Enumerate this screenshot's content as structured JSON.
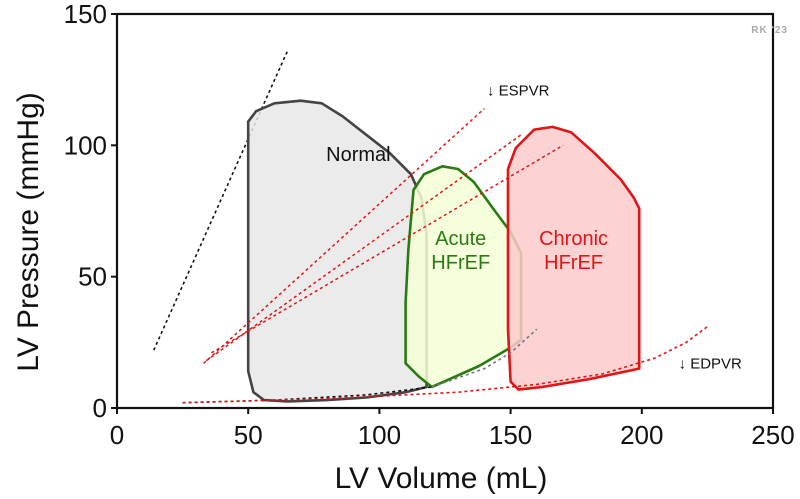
{
  "chart_data": {
    "type": "line",
    "xlabel": "LV Volume (mL)",
    "ylabel": "LV Pressure (mmHg)",
    "xlim": [
      0,
      250
    ],
    "ylim": [
      0,
      150
    ],
    "xticks": [
      0,
      50,
      100,
      150,
      200,
      250
    ],
    "yticks": [
      0,
      50,
      100,
      150
    ],
    "grid": false,
    "credit": "RK '23",
    "loops": [
      {
        "name": "Normal",
        "label_lines": [
          "Normal"
        ],
        "label_at": [
          92,
          94
        ],
        "fill": "#e8e8e8",
        "stroke": "#444444",
        "points": [
          [
            50,
            70
          ],
          [
            50,
            109
          ],
          [
            53,
            113
          ],
          [
            60,
            116
          ],
          [
            70,
            117
          ],
          [
            78,
            116
          ],
          [
            86,
            111
          ],
          [
            95,
            104
          ],
          [
            104,
            97
          ],
          [
            112,
            89
          ],
          [
            116,
            80
          ],
          [
            118,
            66
          ],
          [
            118,
            30
          ],
          [
            118,
            8
          ],
          [
            110,
            6
          ],
          [
            95,
            4
          ],
          [
            80,
            3
          ],
          [
            65,
            2.5
          ],
          [
            56,
            3
          ],
          [
            52,
            6
          ],
          [
            50,
            14
          ]
        ]
      },
      {
        "name": "Acute HFrEF",
        "label_lines": [
          "Acute",
          "HFrEF"
        ],
        "label_at": [
          131,
          62
        ],
        "fill": "#f5ffd6",
        "stroke": "#2a7a12",
        "points": [
          [
            111,
            60
          ],
          [
            113,
            83
          ],
          [
            117,
            89
          ],
          [
            124,
            92
          ],
          [
            130,
            91
          ],
          [
            136,
            86
          ],
          [
            144,
            75
          ],
          [
            150,
            67
          ],
          [
            154,
            59
          ],
          [
            154,
            44
          ],
          [
            154,
            26
          ],
          [
            150,
            23
          ],
          [
            138,
            16
          ],
          [
            120,
            8
          ],
          [
            115,
            12
          ],
          [
            110,
            17
          ],
          [
            110,
            40
          ]
        ]
      },
      {
        "name": "Chronic HFrEF",
        "label_lines": [
          "Chronic",
          "HFrEF"
        ],
        "label_at": [
          174,
          62
        ],
        "fill": "#fccaca",
        "stroke": "#e01515",
        "points": [
          [
            149,
            60
          ],
          [
            149,
            91
          ],
          [
            152,
            99
          ],
          [
            159,
            106
          ],
          [
            166,
            107
          ],
          [
            173,
            105
          ],
          [
            182,
            97
          ],
          [
            192,
            87
          ],
          [
            197,
            80
          ],
          [
            199,
            76
          ],
          [
            199,
            50
          ],
          [
            199,
            15
          ],
          [
            180,
            11
          ],
          [
            162,
            8
          ],
          [
            153,
            7
          ],
          [
            150,
            10
          ],
          [
            149,
            30
          ]
        ]
      }
    ],
    "reference_lines": [
      {
        "name": "Normal ESPVR",
        "color": "#111111",
        "from": [
          14,
          22
        ],
        "to": [
          65,
          136
        ]
      },
      {
        "name": "ESPVR 1",
        "color": "#e01515",
        "from": [
          33,
          17
        ],
        "to": [
          140,
          114
        ]
      },
      {
        "name": "ESPVR 2",
        "color": "#e01515",
        "from": [
          34,
          18
        ],
        "to": [
          154,
          104
        ]
      },
      {
        "name": "ESPVR 3",
        "color": "#e01515",
        "from": [
          36,
          21
        ],
        "to": [
          170,
          100
        ]
      }
    ],
    "edpvr_curves": [
      {
        "name": "Normal EDPVR",
        "color": "#111111",
        "points": [
          [
            25,
            2
          ],
          [
            60,
            3
          ],
          [
            95,
            5
          ],
          [
            120,
            8
          ]
        ]
      },
      {
        "name": "Acute EDPVR",
        "color": "#777777",
        "points": [
          [
            120,
            8
          ],
          [
            140,
            15
          ],
          [
            150,
            21
          ],
          [
            160,
            30
          ]
        ]
      },
      {
        "name": "Chronic EDPVR",
        "color": "#e01515",
        "points": [
          [
            25,
            2
          ],
          [
            80,
            3.5
          ],
          [
            130,
            6
          ],
          [
            160,
            9
          ],
          [
            185,
            13
          ],
          [
            205,
            19
          ],
          [
            217,
            25
          ],
          [
            225,
            31
          ]
        ]
      }
    ],
    "annotations": [
      {
        "text": "↓ ESPVR",
        "at": [
          141,
          119
        ]
      },
      {
        "text": "↓ EDPVR",
        "at": [
          214,
          15
        ]
      }
    ]
  }
}
